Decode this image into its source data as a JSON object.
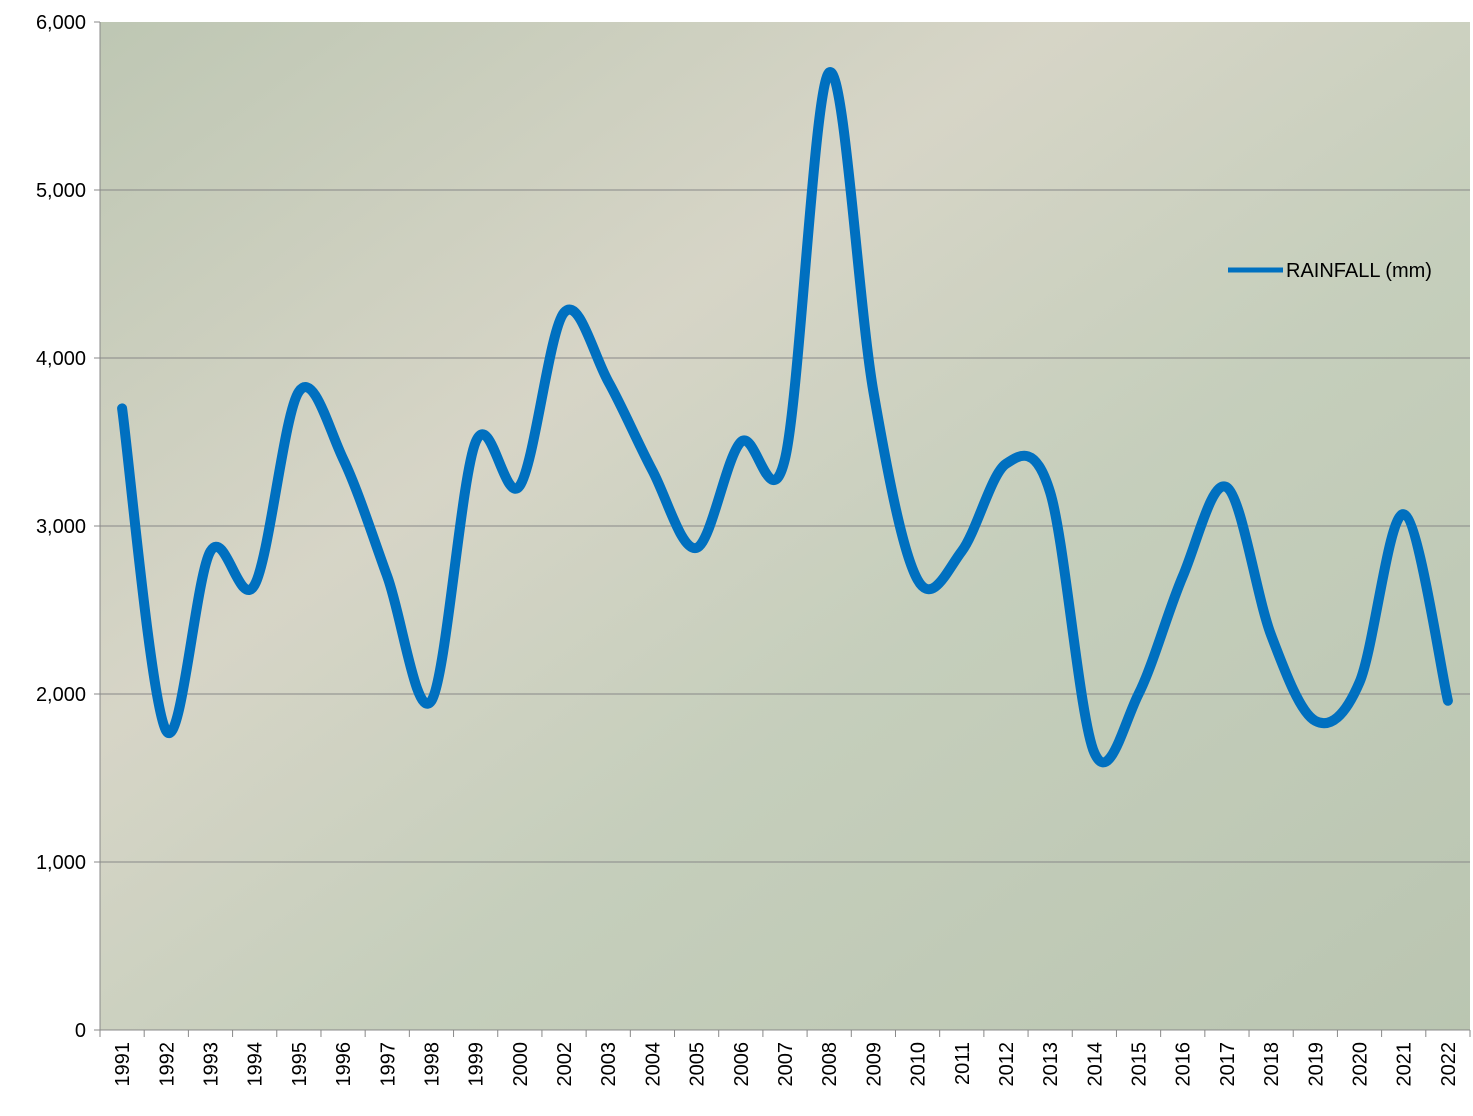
{
  "chart_data": {
    "type": "line",
    "categories": [
      "1991",
      "1992",
      "1993",
      "1994",
      "1995",
      "1996",
      "1997",
      "1998",
      "1999",
      "2000",
      "2002",
      "2003",
      "2004",
      "2005",
      "2006",
      "2007",
      "2008",
      "2009",
      "2010",
      "2011",
      "2012",
      "2013",
      "2014",
      "2015",
      "2016",
      "2017",
      "2018",
      "2019",
      "2020",
      "2021",
      "2022"
    ],
    "series": [
      {
        "name": "RAINFALL (mm)",
        "color": "#0070c0",
        "values": [
          3700,
          1780,
          2850,
          2650,
          3800,
          3400,
          2700,
          1960,
          3500,
          3240,
          4270,
          3860,
          3330,
          2870,
          3500,
          3400,
          5700,
          3800,
          2680,
          2850,
          3370,
          3200,
          1650,
          2000,
          2700,
          3230,
          2350,
          1840,
          2070,
          3070,
          1960
        ]
      }
    ],
    "ylim": [
      0,
      6000
    ],
    "yticks": [
      0,
      {
        "value": 1000,
        "label": "1,000"
      },
      {
        "value": 2000,
        "label": "2,000"
      },
      {
        "value": 3000,
        "label": "3,000"
      },
      {
        "value": 4000,
        "label": "4,000"
      },
      {
        "value": 5000,
        "label": "5,000"
      },
      {
        "value": 6000,
        "label": "6,000"
      }
    ],
    "grid": true,
    "legend": "right"
  }
}
